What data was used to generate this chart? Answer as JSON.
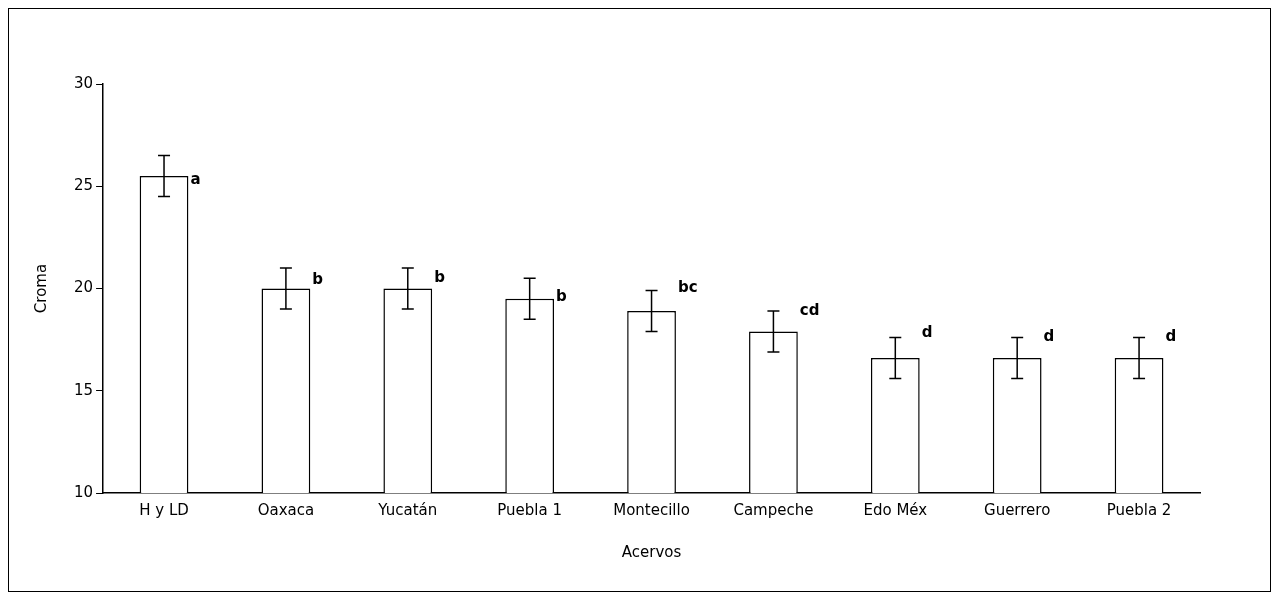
{
  "chart_data": {
    "type": "bar",
    "xlabel": "Acervos",
    "ylabel": "Croma",
    "categories": [
      "H y LD",
      "Oaxaca",
      "Yucatán",
      "Puebla 1",
      "Montecillo",
      "Campeche",
      "Edo Méx",
      "Guerrero",
      "Puebla 2"
    ],
    "values": [
      25.5,
      20.0,
      20.0,
      19.5,
      18.9,
      17.9,
      16.6,
      16.6,
      16.6
    ],
    "errors": [
      1,
      1,
      1,
      1,
      1,
      1,
      1,
      1,
      1
    ],
    "color": "#ffffff",
    "ylim": [
      10,
      30
    ],
    "yticks": [
      10,
      15,
      20,
      25,
      30
    ],
    "grid": false,
    "legend": false,
    "annotations": [
      {
        "text": "a",
        "x": "H y LD",
        "y": 25.3
      },
      {
        "text": "b",
        "x": "Oaxaca",
        "y": 20.4
      },
      {
        "text": "b",
        "x": "Yucatán",
        "y": 20.5
      },
      {
        "text": "b",
        "x": "Puebla 1",
        "y": 19.6
      },
      {
        "text": "bc",
        "x": "Montecillo",
        "y": 20.0
      },
      {
        "text": "cd",
        "x": "Campeche",
        "y": 18.9
      },
      {
        "text": "d",
        "x": "Edo Méx",
        "y": 17.8
      },
      {
        "text": "d",
        "x": "Guerrero",
        "y": 17.6
      },
      {
        "text": "d",
        "x": "Puebla 2",
        "y": 17.6
      }
    ]
  }
}
